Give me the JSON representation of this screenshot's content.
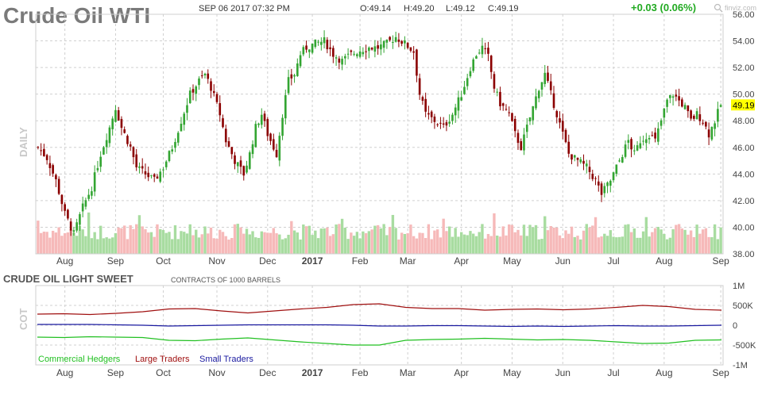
{
  "header": {
    "title": "Crude Oil WTI",
    "datetime": "SEP 06 2017 07:32 PM",
    "open": "O:49.14",
    "high": "H:49.20",
    "low": "L:49.12",
    "close": "C:49.19",
    "change": "+0.03 (0.06%)",
    "watermark": "finviz.com"
  },
  "colors": {
    "up": "#33a532",
    "down": "#8b0000",
    "vol_up": "#a8dca0",
    "vol_down": "#f6b9b9",
    "grid": "#d0d0d0",
    "last_price_bg": "#ffff00",
    "commercial": "#22c022",
    "large": "#a01010",
    "small": "#1a1aa0"
  },
  "chart_data": [
    {
      "type": "candlestick",
      "title": "Crude Oil WTI",
      "ylabel": "DAILY",
      "timeframe": "daily",
      "ylim": [
        38,
        56
      ],
      "y_ticks": [
        "56.00",
        "54.00",
        "52.00",
        "50.00",
        "48.00",
        "46.00",
        "44.00",
        "42.00",
        "40.00",
        "38.00"
      ],
      "x_ticks": [
        "Aug",
        "Sep",
        "Oct",
        "Nov",
        "Dec",
        "2017",
        "Feb",
        "Mar",
        "Apr",
        "May",
        "Jun",
        "Jul",
        "Aug",
        "Sep"
      ],
      "last_price": "49.19",
      "approx_close_path": [
        [
          0,
          46.0
        ],
        [
          3,
          45.2
        ],
        [
          6,
          43.5
        ],
        [
          9,
          41.0
        ],
        [
          12,
          39.5
        ],
        [
          15,
          41.5
        ],
        [
          18,
          43.0
        ],
        [
          21,
          45.5
        ],
        [
          24,
          47.5
        ],
        [
          26,
          49.0
        ],
        [
          28,
          47.5
        ],
        [
          31,
          46.0
        ],
        [
          33,
          44.5
        ],
        [
          36,
          44.0
        ],
        [
          39,
          43.5
        ],
        [
          42,
          44.5
        ],
        [
          45,
          46.0
        ],
        [
          48,
          48.0
        ],
        [
          51,
          50.0
        ],
        [
          54,
          51.0
        ],
        [
          56,
          51.5
        ],
        [
          58,
          50.5
        ],
        [
          61,
          48.5
        ],
        [
          63,
          46.5
        ],
        [
          66,
          45.0
        ],
        [
          69,
          44.0
        ],
        [
          71,
          45.5
        ],
        [
          73,
          47.5
        ],
        [
          75,
          48.5
        ],
        [
          77,
          47.0
        ],
        [
          80,
          45.5
        ],
        [
          82,
          48.5
        ],
        [
          84,
          51.0
        ],
        [
          86,
          51.5
        ],
        [
          88,
          53.0
        ],
        [
          90,
          53.5
        ],
        [
          93,
          53.8
        ],
        [
          96,
          54.0
        ],
        [
          99,
          53.0
        ],
        [
          102,
          52.5
        ],
        [
          105,
          53.0
        ],
        [
          108,
          53.3
        ],
        [
          111,
          53.5
        ],
        [
          114,
          53.5
        ],
        [
          117,
          53.8
        ],
        [
          120,
          54.3
        ],
        [
          123,
          53.8
        ],
        [
          126,
          53.2
        ],
        [
          128,
          50.0
        ],
        [
          130,
          48.5
        ],
        [
          133,
          48.0
        ],
        [
          136,
          47.5
        ],
        [
          139,
          48.5
        ],
        [
          142,
          50.0
        ],
        [
          145,
          52.0
        ],
        [
          147,
          53.0
        ],
        [
          149,
          53.5
        ],
        [
          151,
          52.8
        ],
        [
          153,
          50.5
        ],
        [
          155,
          49.3
        ],
        [
          158,
          48.5
        ],
        [
          160,
          47.0
        ],
        [
          162,
          46.0
        ],
        [
          164,
          47.5
        ],
        [
          166,
          49.0
        ],
        [
          168,
          50.5
        ],
        [
          170,
          51.5
        ],
        [
          172,
          50.0
        ],
        [
          174,
          48.5
        ],
        [
          176,
          47.0
        ],
        [
          178,
          45.5
        ],
        [
          181,
          45.0
        ],
        [
          184,
          44.5
        ],
        [
          187,
          43.5
        ],
        [
          189,
          42.5
        ],
        [
          192,
          43.5
        ],
        [
          195,
          45.0
        ],
        [
          198,
          46.5
        ],
        [
          200,
          45.5
        ],
        [
          202,
          46.5
        ],
        [
          205,
          47.0
        ],
        [
          207,
          46.5
        ],
        [
          209,
          48.0
        ],
        [
          211,
          49.5
        ],
        [
          213,
          50.0
        ],
        [
          215,
          49.5
        ],
        [
          217,
          49.0
        ],
        [
          219,
          48.0
        ],
        [
          221,
          48.5
        ],
        [
          223,
          48.0
        ],
        [
          225,
          47.0
        ],
        [
          227,
          48.0
        ],
        [
          229,
          49.19
        ]
      ]
    },
    {
      "type": "line",
      "title": "CRUDE OIL LIGHT SWEET",
      "subtitle": "CONTRACTS OF 1000 BARRELS",
      "ylabel": "COT",
      "ylim": [
        -1000000,
        1000000
      ],
      "y_ticks": [
        "1M",
        "500K",
        "0",
        "-500K",
        "-1M"
      ],
      "x_ticks": [
        "Aug",
        "Sep",
        "Oct",
        "Nov",
        "Dec",
        "2017",
        "Feb",
        "Mar",
        "Apr",
        "May",
        "Jun",
        "Jul",
        "Aug",
        "Sep"
      ],
      "series": [
        {
          "name": "Commercial Hedgers",
          "values": [
            -300000,
            -310000,
            -290000,
            -300000,
            -310000,
            -380000,
            -390000,
            -350000,
            -320000,
            -370000,
            -420000,
            -460000,
            -500000,
            -500000,
            -380000,
            -360000,
            -350000,
            -330000,
            -350000,
            -370000,
            -360000,
            -380000,
            -420000,
            -460000,
            -450000,
            -380000,
            -370000
          ]
        },
        {
          "name": "Large Traders",
          "values": [
            280000,
            290000,
            270000,
            300000,
            340000,
            410000,
            420000,
            360000,
            310000,
            360000,
            410000,
            450000,
            520000,
            540000,
            450000,
            420000,
            420000,
            380000,
            400000,
            410000,
            390000,
            410000,
            450000,
            500000,
            470000,
            400000,
            380000
          ]
        },
        {
          "name": "Small Traders",
          "values": [
            20000,
            20000,
            20000,
            10000,
            0,
            -20000,
            -10000,
            0,
            10000,
            10000,
            10000,
            10000,
            0,
            -20000,
            -20000,
            -10000,
            -10000,
            -20000,
            -30000,
            -20000,
            -30000,
            -20000,
            -10000,
            -20000,
            -20000,
            -10000,
            0
          ]
        }
      ]
    }
  ]
}
